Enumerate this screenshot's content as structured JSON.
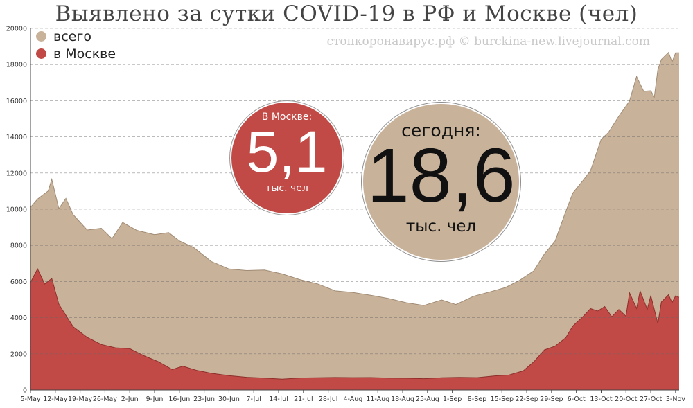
{
  "title": "Выявлено за сутки COVID-19 в РФ и Москве (чел)",
  "source": "стопкоронавирус.рф © burckina-new.livejournal.com",
  "legend": [
    {
      "label": "всего",
      "color": "#c9b29a"
    },
    {
      "label": "в Москве",
      "color": "#c14a46"
    }
  ],
  "bubbles": {
    "moscow": {
      "label": "В Москве:",
      "value": "5,1",
      "unit": "тыс. чел"
    },
    "total": {
      "label": "сегодня:",
      "value": "18,6",
      "unit": "тыс. чел"
    }
  },
  "chart_data": {
    "type": "area",
    "title": "Выявлено за сутки COVID-19 в РФ и Москве (чел)",
    "x_start": "2020-05-05",
    "x_end": "2020-11-04",
    "x_tick_labels": [
      "5-May",
      "12-May",
      "19-May",
      "26-May",
      "2-Jun",
      "9-Jun",
      "16-Jun",
      "23-Jun",
      "30-Jun",
      "7-Jul",
      "14-Jul",
      "21-Jul",
      "28-Jul",
      "4-Aug",
      "11-Aug",
      "18-Aug",
      "25-Aug",
      "1-Sep",
      "8-Sep",
      "15-Sep",
      "22-Sep",
      "29-Sep",
      "6-Oct",
      "13-Oct",
      "20-Oct",
      "27-Oct",
      "3-Nov"
    ],
    "ylim": [
      0,
      20000
    ],
    "y_ticks": [
      0,
      2000,
      4000,
      6000,
      8000,
      10000,
      12000,
      14000,
      16000,
      18000,
      20000
    ],
    "grid": "horizontal",
    "legend_position": "top-left",
    "series": [
      {
        "name": "всего",
        "color": "#c9b29a",
        "points": [
          [
            "2020-05-05",
            10102
          ],
          [
            "2020-05-07",
            10559
          ],
          [
            "2020-05-10",
            11012
          ],
          [
            "2020-05-11",
            11656
          ],
          [
            "2020-05-13",
            10028
          ],
          [
            "2020-05-15",
            10598
          ],
          [
            "2020-05-17",
            9709
          ],
          [
            "2020-05-21",
            8849
          ],
          [
            "2020-05-25",
            8946
          ],
          [
            "2020-05-28",
            8371
          ],
          [
            "2020-05-31",
            9268
          ],
          [
            "2020-06-04",
            8831
          ],
          [
            "2020-06-09",
            8595
          ],
          [
            "2020-06-13",
            8706
          ],
          [
            "2020-06-16",
            8248
          ],
          [
            "2020-06-20",
            7889
          ],
          [
            "2020-06-25",
            7113
          ],
          [
            "2020-06-30",
            6693
          ],
          [
            "2020-07-05",
            6611
          ],
          [
            "2020-07-10",
            6635
          ],
          [
            "2020-07-15",
            6422
          ],
          [
            "2020-07-20",
            6109
          ],
          [
            "2020-07-25",
            5871
          ],
          [
            "2020-07-30",
            5482
          ],
          [
            "2020-08-04",
            5394
          ],
          [
            "2020-08-09",
            5241
          ],
          [
            "2020-08-14",
            5061
          ],
          [
            "2020-08-19",
            4828
          ],
          [
            "2020-08-24",
            4676
          ],
          [
            "2020-08-29",
            4980
          ],
          [
            "2020-09-02",
            4729
          ],
          [
            "2020-09-07",
            5185
          ],
          [
            "2020-09-12",
            5449
          ],
          [
            "2020-09-16",
            5670
          ],
          [
            "2020-09-20",
            6065
          ],
          [
            "2020-09-24",
            6595
          ],
          [
            "2020-09-27",
            7523
          ],
          [
            "2020-09-30",
            8232
          ],
          [
            "2020-10-03",
            9859
          ],
          [
            "2020-10-05",
            10888
          ],
          [
            "2020-10-08",
            11615
          ],
          [
            "2020-10-10",
            12126
          ],
          [
            "2020-10-13",
            13868
          ],
          [
            "2020-10-15",
            14231
          ],
          [
            "2020-10-18",
            15150
          ],
          [
            "2020-10-21",
            15982
          ],
          [
            "2020-10-23",
            17340
          ],
          [
            "2020-10-25",
            16521
          ],
          [
            "2020-10-27",
            16550
          ],
          [
            "2020-10-28",
            16202
          ],
          [
            "2020-10-29",
            17717
          ],
          [
            "2020-10-30",
            18283
          ],
          [
            "2020-11-01",
            18665
          ],
          [
            "2020-11-02",
            18140
          ],
          [
            "2020-11-03",
            18648
          ],
          [
            "2020-11-04",
            18648
          ]
        ]
      },
      {
        "name": "в Москве",
        "color": "#c14a46",
        "points": [
          [
            "2020-05-05",
            5948
          ],
          [
            "2020-05-07",
            6703
          ],
          [
            "2020-05-09",
            5858
          ],
          [
            "2020-05-11",
            6169
          ],
          [
            "2020-05-13",
            4748
          ],
          [
            "2020-05-17",
            3505
          ],
          [
            "2020-05-21",
            2913
          ],
          [
            "2020-05-25",
            2516
          ],
          [
            "2020-05-29",
            2332
          ],
          [
            "2020-06-02",
            2286
          ],
          [
            "2020-06-06",
            1898
          ],
          [
            "2020-06-10",
            1572
          ],
          [
            "2020-06-14",
            1136
          ],
          [
            "2020-06-17",
            1319
          ],
          [
            "2020-06-21",
            1081
          ],
          [
            "2020-06-25",
            923
          ],
          [
            "2020-06-30",
            794
          ],
          [
            "2020-07-05",
            706
          ],
          [
            "2020-07-10",
            661
          ],
          [
            "2020-07-15",
            606
          ],
          [
            "2020-07-20",
            665
          ],
          [
            "2020-07-25",
            682
          ],
          [
            "2020-07-30",
            692
          ],
          [
            "2020-08-04",
            687
          ],
          [
            "2020-08-09",
            691
          ],
          [
            "2020-08-14",
            661
          ],
          [
            "2020-08-19",
            650
          ],
          [
            "2020-08-24",
            630
          ],
          [
            "2020-08-29",
            680
          ],
          [
            "2020-09-03",
            700
          ],
          [
            "2020-09-08",
            684
          ],
          [
            "2020-09-13",
            783
          ],
          [
            "2020-09-17",
            828
          ],
          [
            "2020-09-21",
            1056
          ],
          [
            "2020-09-24",
            1560
          ],
          [
            "2020-09-27",
            2217
          ],
          [
            "2020-09-30",
            2424
          ],
          [
            "2020-10-03",
            2884
          ],
          [
            "2020-10-05",
            3537
          ],
          [
            "2020-10-08",
            4082
          ],
          [
            "2020-10-10",
            4501
          ],
          [
            "2020-10-12",
            4369
          ],
          [
            "2020-10-14",
            4612
          ],
          [
            "2020-10-16",
            4049
          ],
          [
            "2020-10-18",
            4451
          ],
          [
            "2020-10-20",
            4082
          ],
          [
            "2020-10-21",
            5376
          ],
          [
            "2020-10-23",
            4509
          ],
          [
            "2020-10-24",
            5478
          ],
          [
            "2020-10-26",
            4455
          ],
          [
            "2020-10-27",
            5224
          ],
          [
            "2020-10-29",
            3677
          ],
          [
            "2020-10-30",
            4867
          ],
          [
            "2020-11-01",
            5268
          ],
          [
            "2020-11-02",
            4826
          ],
          [
            "2020-11-03",
            5206
          ],
          [
            "2020-11-04",
            5126
          ]
        ]
      }
    ]
  }
}
